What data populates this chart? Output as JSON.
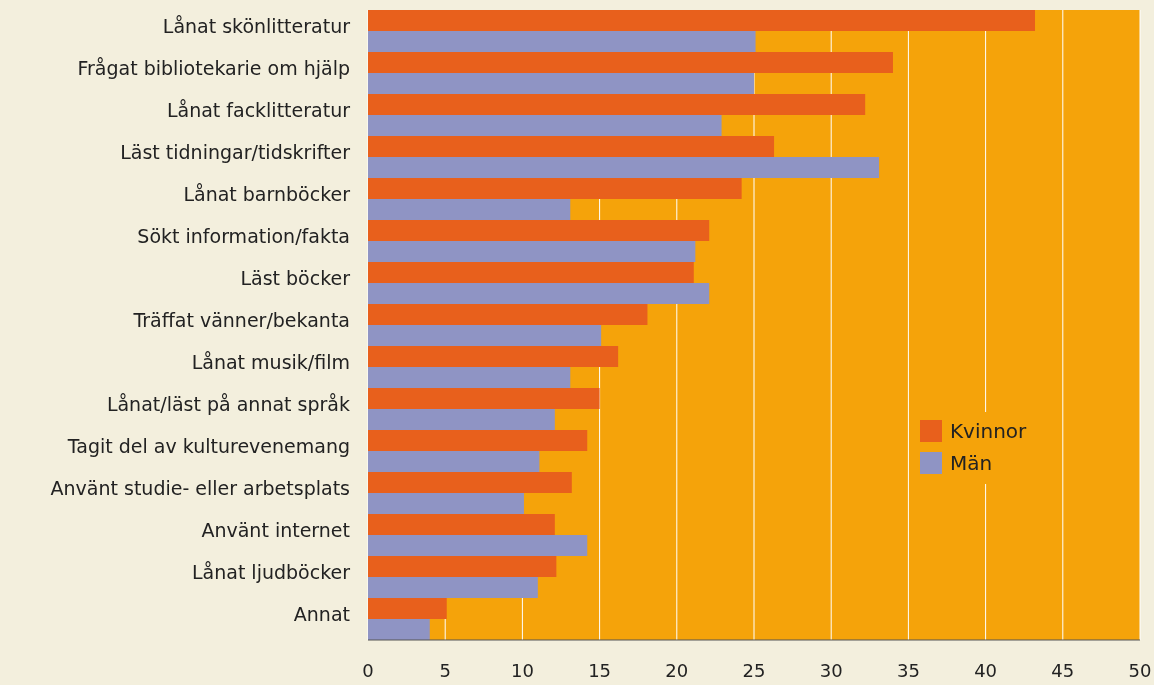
{
  "chart_data": {
    "type": "bar",
    "orientation": "horizontal",
    "categories": [
      "Lånat skönlitteratur",
      "Frågat bibliotekarie om hjälp",
      "Lånat facklitteratur",
      "Läst tidningar/tidskrifter",
      "Lånat barnböcker",
      "Sökt information/fakta",
      "Läst böcker",
      "Träffat vänner/bekanta",
      "Lånat musik/film",
      "Lånat/läst på annat språk",
      "Tagit del av kulturevenemang",
      "Använt studie- eller arbetsplats",
      "Använt internet",
      "Lånat ljudböcker",
      "Annat"
    ],
    "series": [
      {
        "name": "Kvinnor",
        "color": "#e8601c",
        "values": [
          43.2,
          34.0,
          32.2,
          26.3,
          24.2,
          22.1,
          21.1,
          18.1,
          16.2,
          15.0,
          14.2,
          13.2,
          12.1,
          12.2,
          5.1
        ]
      },
      {
        "name": "Män",
        "color": "#8f94c4",
        "values": [
          25.1,
          25.0,
          22.9,
          33.1,
          13.1,
          21.2,
          22.1,
          15.1,
          13.1,
          12.1,
          11.1,
          10.1,
          14.2,
          11.0,
          4.0
        ]
      }
    ],
    "xlim": [
      0,
      50
    ],
    "xticks": [
      0,
      5,
      10,
      15,
      20,
      25,
      30,
      35,
      40,
      45,
      50
    ],
    "grid": "x",
    "legend": "right"
  }
}
